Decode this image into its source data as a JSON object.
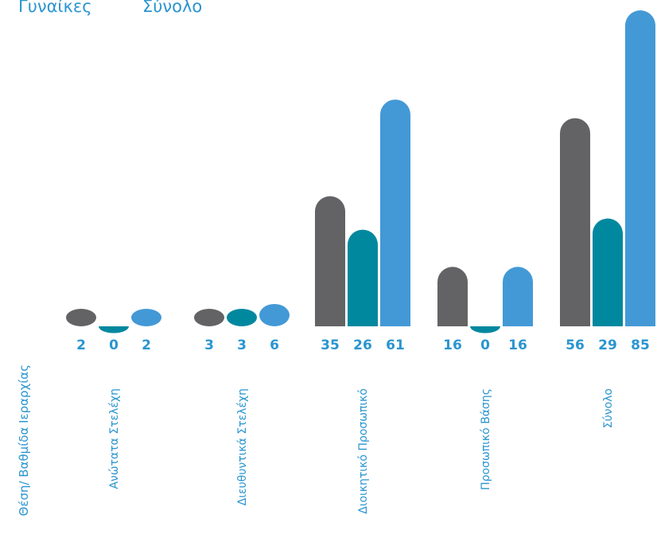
{
  "legend": {
    "women": "Γυναίκες",
    "total": "Σύνολο"
  },
  "colors": {
    "men": "#636366",
    "women": "#00889f",
    "total": "#4399d6",
    "value_label": "#2a95cf",
    "category_label": "#2a95cf",
    "axis_title": "#2a95cf"
  },
  "chart_data": {
    "type": "bar",
    "xlabel": "Θέση/ Βαθμίδα Ιεραρχίας",
    "categories": [
      "Ανώτατα Στελέχη",
      "Διευθυντικά Στελέχη",
      "Διοικητικό Προσωπικό",
      "Προσωπικό Βάσης",
      "Σύνολο"
    ],
    "series": [
      {
        "name": "",
        "color": "#636366",
        "values": [
          2,
          3,
          35,
          16,
          56
        ]
      },
      {
        "name": "Γυναίκες",
        "color": "#00889f",
        "values": [
          0,
          3,
          26,
          0,
          29
        ]
      },
      {
        "name": "Σύνολο",
        "color": "#4399d6",
        "values": [
          2,
          6,
          61,
          16,
          85
        ]
      }
    ],
    "ylim": [
      0,
      85
    ],
    "grid": false,
    "legend_position": "top-left"
  }
}
